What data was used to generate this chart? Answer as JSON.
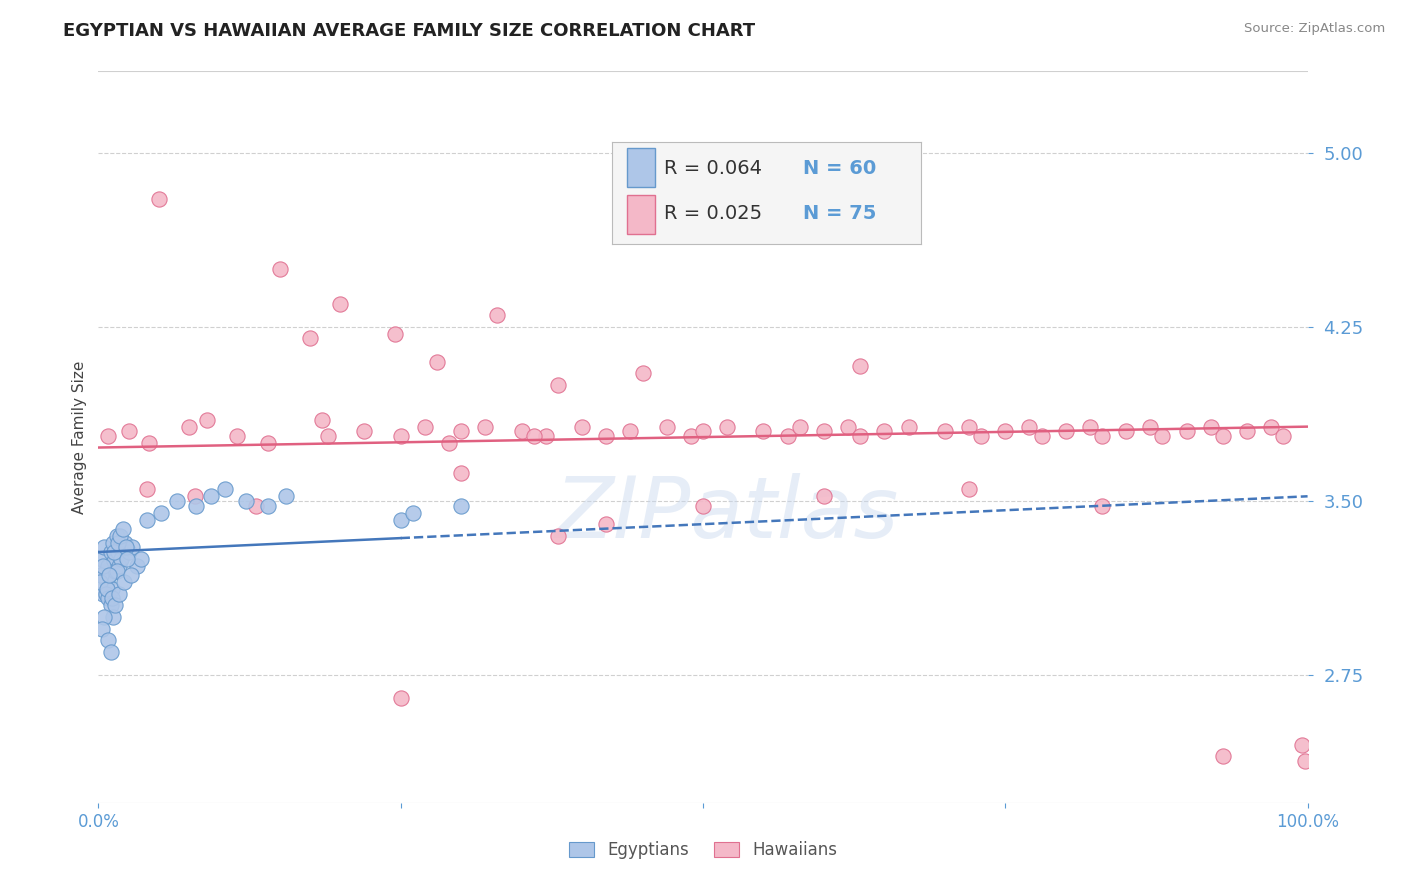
{
  "title": "EGYPTIAN VS HAWAIIAN AVERAGE FAMILY SIZE CORRELATION CHART",
  "source_text": "Source: ZipAtlas.com",
  "ylabel": "Average Family Size",
  "xlim": [
    0.0,
    100.0
  ],
  "ylim": [
    2.2,
    5.35
  ],
  "yticks": [
    2.75,
    3.5,
    4.25,
    5.0
  ],
  "background_color": "#ffffff",
  "grid_color": "#d0d0d0",
  "title_fontsize": 13,
  "axis_label_color": "#5b9bd5",
  "egyptian_color": "#aec6e8",
  "hawaiian_color": "#f4b8c8",
  "egyptian_edge_color": "#6699cc",
  "hawaiian_edge_color": "#e07090",
  "trend_blue_color": "#4477bb",
  "trend_pink_color": "#e06080",
  "legend_R_egyptian": "0.064",
  "legend_N_egyptian": "60",
  "legend_R_hawaiian": "0.025",
  "legend_N_hawaiian": "75",
  "watermark": "ZIPatlas",
  "eg_trend_x0": 0,
  "eg_trend_y0": 3.28,
  "eg_trend_x1": 100,
  "eg_trend_y1": 3.52,
  "haw_trend_x0": 0,
  "haw_trend_y0": 3.73,
  "haw_trend_x1": 100,
  "haw_trend_y1": 3.82,
  "eg_solid_end": 25,
  "egyptians_x": [
    0.3,
    0.4,
    0.5,
    0.6,
    0.7,
    0.8,
    0.9,
    1.0,
    1.1,
    1.2,
    1.3,
    1.4,
    1.5,
    1.6,
    1.7,
    1.8,
    1.9,
    2.0,
    2.2,
    2.5,
    2.8,
    3.2,
    3.5,
    0.2,
    0.1,
    0.6,
    0.8,
    1.0,
    1.2,
    1.5,
    0.4,
    0.7,
    0.9,
    1.1,
    1.3,
    1.6,
    1.8,
    2.0,
    2.3,
    0.5,
    0.3,
    0.8,
    1.0,
    1.4,
    1.7,
    2.1,
    2.4,
    2.7,
    4.0,
    5.2,
    6.5,
    8.1,
    9.3,
    10.5,
    12.2,
    14.0,
    15.5,
    25.0,
    26.0,
    30.0
  ],
  "egyptians_y": [
    3.25,
    3.1,
    3.3,
    3.2,
    3.15,
    3.22,
    3.18,
    3.28,
    3.12,
    3.32,
    3.24,
    3.2,
    3.35,
    3.28,
    3.22,
    3.3,
    3.25,
    3.3,
    3.32,
    3.28,
    3.3,
    3.22,
    3.25,
    3.18,
    3.15,
    3.1,
    3.08,
    3.05,
    3.0,
    3.2,
    3.22,
    3.12,
    3.18,
    3.08,
    3.28,
    3.32,
    3.35,
    3.38,
    3.3,
    3.0,
    2.95,
    2.9,
    2.85,
    3.05,
    3.1,
    3.15,
    3.25,
    3.18,
    3.42,
    3.45,
    3.5,
    3.48,
    3.52,
    3.55,
    3.5,
    3.48,
    3.52,
    3.42,
    3.45,
    3.48
  ],
  "hawaiians_x": [
    0.8,
    2.5,
    4.2,
    5.0,
    7.5,
    9.0,
    11.5,
    14.0,
    15.0,
    17.5,
    19.0,
    20.0,
    22.0,
    25.0,
    27.0,
    28.0,
    29.0,
    30.0,
    32.0,
    33.0,
    35.0,
    37.0,
    38.0,
    40.0,
    42.0,
    44.0,
    45.0,
    47.0,
    49.0,
    50.0,
    52.0,
    55.0,
    57.0,
    58.0,
    60.0,
    62.0,
    63.0,
    65.0,
    67.0,
    70.0,
    72.0,
    73.0,
    75.0,
    77.0,
    78.0,
    80.0,
    82.0,
    83.0,
    85.0,
    87.0,
    88.0,
    90.0,
    92.0,
    93.0,
    95.0,
    97.0,
    98.0,
    99.5,
    63.0,
    18.5,
    24.5,
    30.0,
    36.0,
    42.0,
    4.0,
    8.0,
    13.0,
    25.0,
    38.0,
    50.0,
    60.0,
    72.0,
    83.0,
    93.0,
    99.8
  ],
  "hawaiians_y": [
    3.78,
    3.8,
    3.75,
    4.8,
    3.82,
    3.85,
    3.78,
    3.75,
    4.5,
    4.2,
    3.78,
    4.35,
    3.8,
    3.78,
    3.82,
    4.1,
    3.75,
    3.8,
    3.82,
    4.3,
    3.8,
    3.78,
    4.0,
    3.82,
    3.78,
    3.8,
    4.05,
    3.82,
    3.78,
    3.8,
    3.82,
    3.8,
    3.78,
    3.82,
    3.8,
    3.82,
    3.78,
    3.8,
    3.82,
    3.8,
    3.82,
    3.78,
    3.8,
    3.82,
    3.78,
    3.8,
    3.82,
    3.78,
    3.8,
    3.82,
    3.78,
    3.8,
    3.82,
    3.78,
    3.8,
    3.82,
    3.78,
    2.45,
    4.08,
    3.85,
    4.22,
    3.62,
    3.78,
    3.4,
    3.55,
    3.52,
    3.48,
    2.65,
    3.35,
    3.48,
    3.52,
    3.55,
    3.48,
    2.4,
    2.38
  ]
}
